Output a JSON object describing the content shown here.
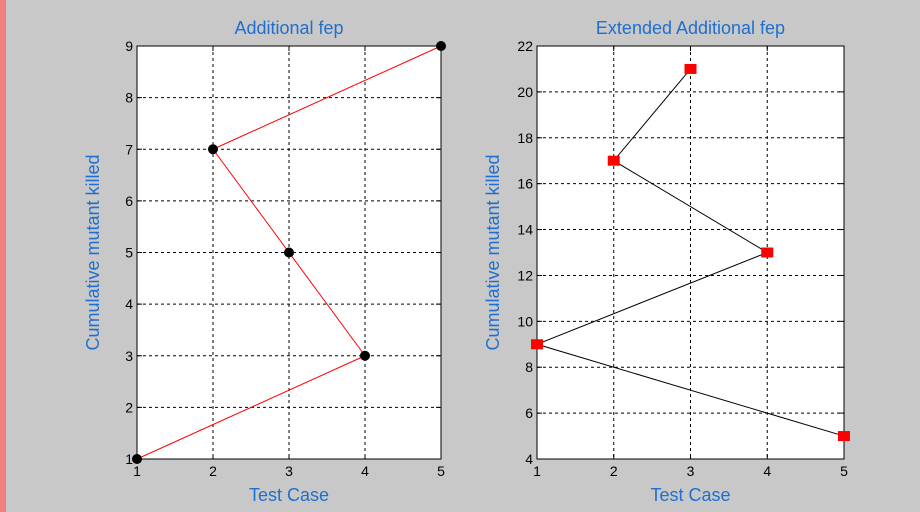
{
  "figure": {
    "background_color": "#c8c8c8",
    "left_border_color": "#f08080",
    "title_color": "#1f6fd0",
    "label_color": "#1f6fd0"
  },
  "chart_data": [
    {
      "type": "line",
      "title": "Additional fep",
      "xlabel": "Test Case",
      "ylabel": "Cumulative mutant killed",
      "x": [
        1,
        2,
        3,
        4,
        5
      ],
      "xlim": [
        1,
        5
      ],
      "ylim": [
        1,
        9
      ],
      "xticks": [
        1,
        2,
        3,
        4,
        5
      ],
      "yticks": [
        1,
        2,
        3,
        4,
        5,
        6,
        7,
        8,
        9
      ],
      "grid": true,
      "series": [
        {
          "points": [
            [
              1,
              1
            ],
            [
              4,
              3
            ],
            [
              3,
              5
            ],
            [
              2,
              7
            ],
            [
              5,
              9
            ]
          ],
          "line_color": "#ff0000",
          "marker": "circle",
          "marker_color": "#000000"
        }
      ]
    },
    {
      "type": "line",
      "title": "Extended Additional fep",
      "xlabel": "Test Case",
      "ylabel": "Cumulative mutant killed",
      "x": [
        1,
        2,
        3,
        4,
        5
      ],
      "xlim": [
        1,
        5
      ],
      "ylim": [
        4,
        22
      ],
      "xticks": [
        1,
        2,
        3,
        4,
        5
      ],
      "yticks": [
        4,
        6,
        8,
        10,
        12,
        14,
        16,
        18,
        20,
        22
      ],
      "grid": true,
      "series": [
        {
          "points": [
            [
              5,
              5
            ],
            [
              1,
              9
            ],
            [
              4,
              13
            ],
            [
              2,
              17
            ],
            [
              3,
              21
            ]
          ],
          "line_color": "#000000",
          "marker": "square",
          "marker_color": "#ff0000"
        }
      ]
    }
  ]
}
